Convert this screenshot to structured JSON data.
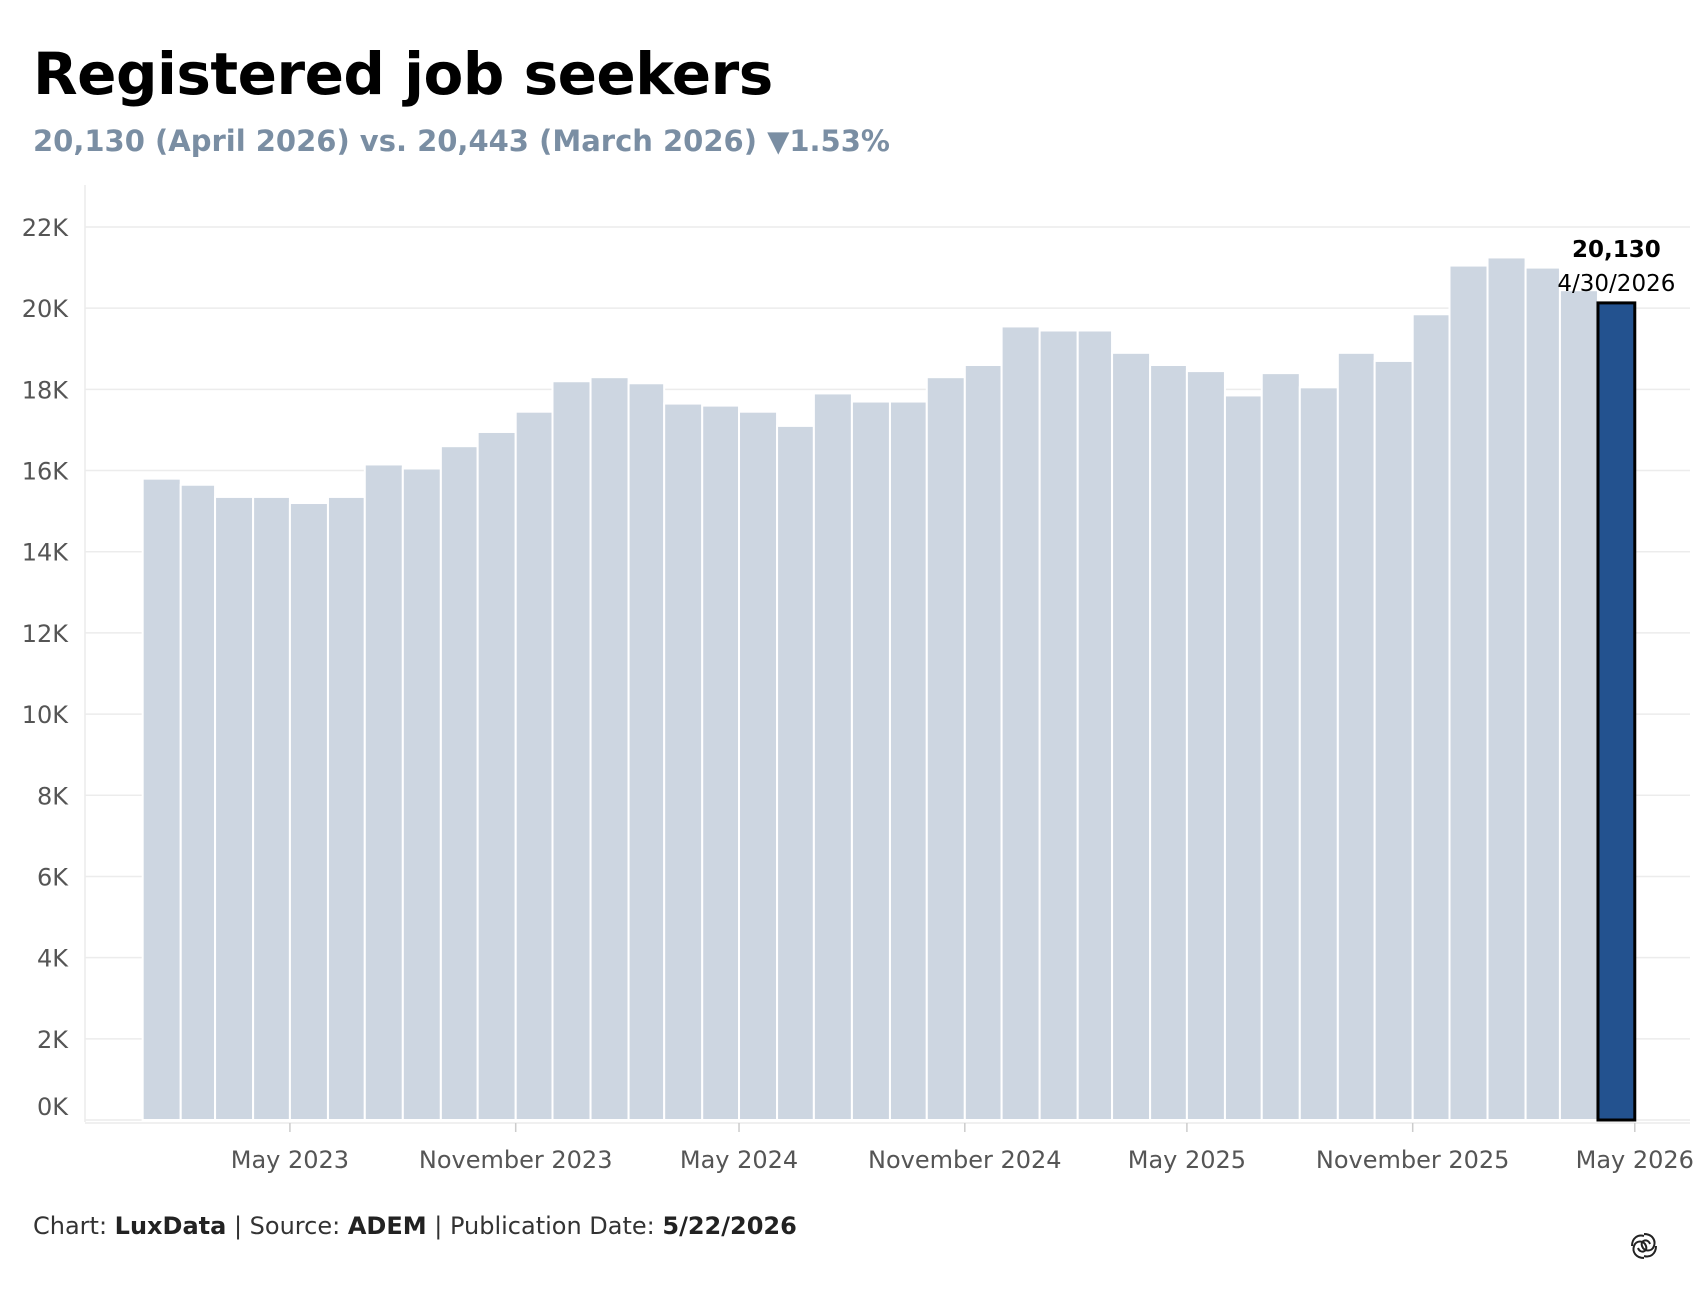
{
  "header": {
    "title": "Registered job seekers",
    "subtitle": "20,130 (April 2026) vs. 20,443 (March 2026) ▼1.53%"
  },
  "footer": {
    "chart_prefix": "Chart: ",
    "chart_by": "LuxData",
    "source_prefix": " | Source: ",
    "source": "ADEM",
    "pub_prefix": " | Publication Date: ",
    "pub_date": "5/22/2026"
  },
  "colors": {
    "bar": "#cdd6e1",
    "highlight_bar": "#23528f",
    "grid": "#ececec",
    "axis_text": "#555555"
  },
  "chart_data": {
    "type": "bar",
    "title": "Registered job seekers",
    "x": [
      "2023-01-31",
      "2023-02-28",
      "2023-03-31",
      "2023-04-30",
      "2023-05-31",
      "2023-06-30",
      "2023-07-31",
      "2023-08-31",
      "2023-09-30",
      "2023-10-31",
      "2023-11-30",
      "2023-12-31",
      "2024-01-31",
      "2024-02-29",
      "2024-03-31",
      "2024-04-30",
      "2024-05-31",
      "2024-06-30",
      "2024-07-31",
      "2024-08-31",
      "2024-09-30",
      "2024-10-31",
      "2024-11-30",
      "2024-12-31",
      "2025-01-31",
      "2025-02-28",
      "2025-03-31",
      "2025-04-30",
      "2025-05-31",
      "2025-06-30",
      "2025-07-31",
      "2025-08-31",
      "2025-09-30",
      "2025-10-31",
      "2025-11-30",
      "2025-12-31",
      "2026-01-31",
      "2026-02-28",
      "2026-03-31",
      "2026-04-30"
    ],
    "values": [
      15800,
      15650,
      15350,
      15350,
      15200,
      15350,
      16150,
      16050,
      16600,
      16950,
      17450,
      18200,
      18300,
      18150,
      17650,
      17600,
      17450,
      17100,
      17900,
      17700,
      17700,
      18300,
      18600,
      19550,
      19450,
      19450,
      18900,
      18600,
      18450,
      17850,
      18400,
      18050,
      18900,
      18700,
      19850,
      21050,
      21250,
      21000,
      20443,
      20130
    ],
    "highlight": {
      "index": 39,
      "value_label": "20,130",
      "date_label": "4/30/2026"
    },
    "x_ticks": [
      {
        "date": "2023-05-01",
        "label": "May 2023"
      },
      {
        "date": "2023-11-01",
        "label": "November 2023"
      },
      {
        "date": "2024-05-01",
        "label": "May 2024"
      },
      {
        "date": "2024-11-01",
        "label": "November 2024"
      },
      {
        "date": "2025-05-01",
        "label": "May 2025"
      },
      {
        "date": "2025-11-01",
        "label": "November 2025"
      },
      {
        "date": "2026-05-01",
        "label": "May 2026"
      }
    ],
    "y_ticks": [
      {
        "value": 0,
        "label": "0K"
      },
      {
        "value": 2000,
        "label": "2K"
      },
      {
        "value": 4000,
        "label": "4K"
      },
      {
        "value": 6000,
        "label": "6K"
      },
      {
        "value": 8000,
        "label": "8K"
      },
      {
        "value": 10000,
        "label": "10K"
      },
      {
        "value": 12000,
        "label": "12K"
      },
      {
        "value": 14000,
        "label": "14K"
      },
      {
        "value": 16000,
        "label": "16K"
      },
      {
        "value": 18000,
        "label": "18K"
      },
      {
        "value": 20000,
        "label": "20K"
      },
      {
        "value": 22000,
        "label": "22K"
      }
    ],
    "xlim": [
      "2022-11-15",
      "2026-06-15"
    ],
    "ylim": [
      0,
      22000
    ],
    "grid": true,
    "legend": "none"
  }
}
